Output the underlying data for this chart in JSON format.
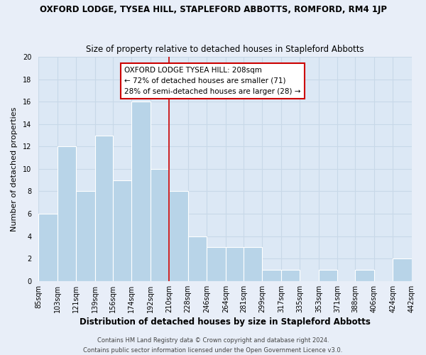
{
  "title": "OXFORD LODGE, TYSEA HILL, STAPLEFORD ABBOTTS, ROMFORD, RM4 1JP",
  "subtitle": "Size of property relative to detached houses in Stapleford Abbotts",
  "xlabel": "Distribution of detached houses by size in Stapleford Abbotts",
  "ylabel": "Number of detached properties",
  "bin_labels": [
    "85sqm",
    "103sqm",
    "121sqm",
    "139sqm",
    "156sqm",
    "174sqm",
    "192sqm",
    "210sqm",
    "228sqm",
    "246sqm",
    "264sqm",
    "281sqm",
    "299sqm",
    "317sqm",
    "335sqm",
    "353sqm",
    "371sqm",
    "388sqm",
    "406sqm",
    "424sqm",
    "442sqm"
  ],
  "all_edges": [
    85,
    103,
    121,
    139,
    156,
    174,
    192,
    210,
    228,
    246,
    264,
    281,
    299,
    317,
    335,
    353,
    371,
    388,
    406,
    424,
    442
  ],
  "heights_full": [
    6,
    12,
    8,
    13,
    9,
    16,
    10,
    8,
    4,
    3,
    3,
    3,
    1,
    1,
    0,
    1,
    0,
    1,
    0,
    2,
    0
  ],
  "bar_color": "#b8d4e8",
  "bar_edge_color": "#b8d4e8",
  "vline_x": 210,
  "vline_color": "#cc0000",
  "ylim": [
    0,
    20
  ],
  "yticks": [
    0,
    2,
    4,
    6,
    8,
    10,
    12,
    14,
    16,
    18,
    20
  ],
  "annotation_title": "OXFORD LODGE TYSEA HILL: 208sqm",
  "annotation_line1": "← 72% of detached houses are smaller (71)",
  "annotation_line2": "28% of semi-detached houses are larger (28) →",
  "annotation_box_color": "#ffffff",
  "annotation_box_edge_color": "#cc0000",
  "footer1": "Contains HM Land Registry data © Crown copyright and database right 2024.",
  "footer2": "Contains public sector information licensed under the Open Government Licence v3.0.",
  "bg_color": "#e8eef8",
  "plot_bg_color": "#dce8f5",
  "grid_color": "#c8d8e8",
  "title_fontsize": 8.5,
  "subtitle_fontsize": 8.5,
  "xlabel_fontsize": 8.5,
  "ylabel_fontsize": 8,
  "tick_fontsize": 7,
  "footer_fontsize": 6,
  "annot_fontsize": 7.5
}
